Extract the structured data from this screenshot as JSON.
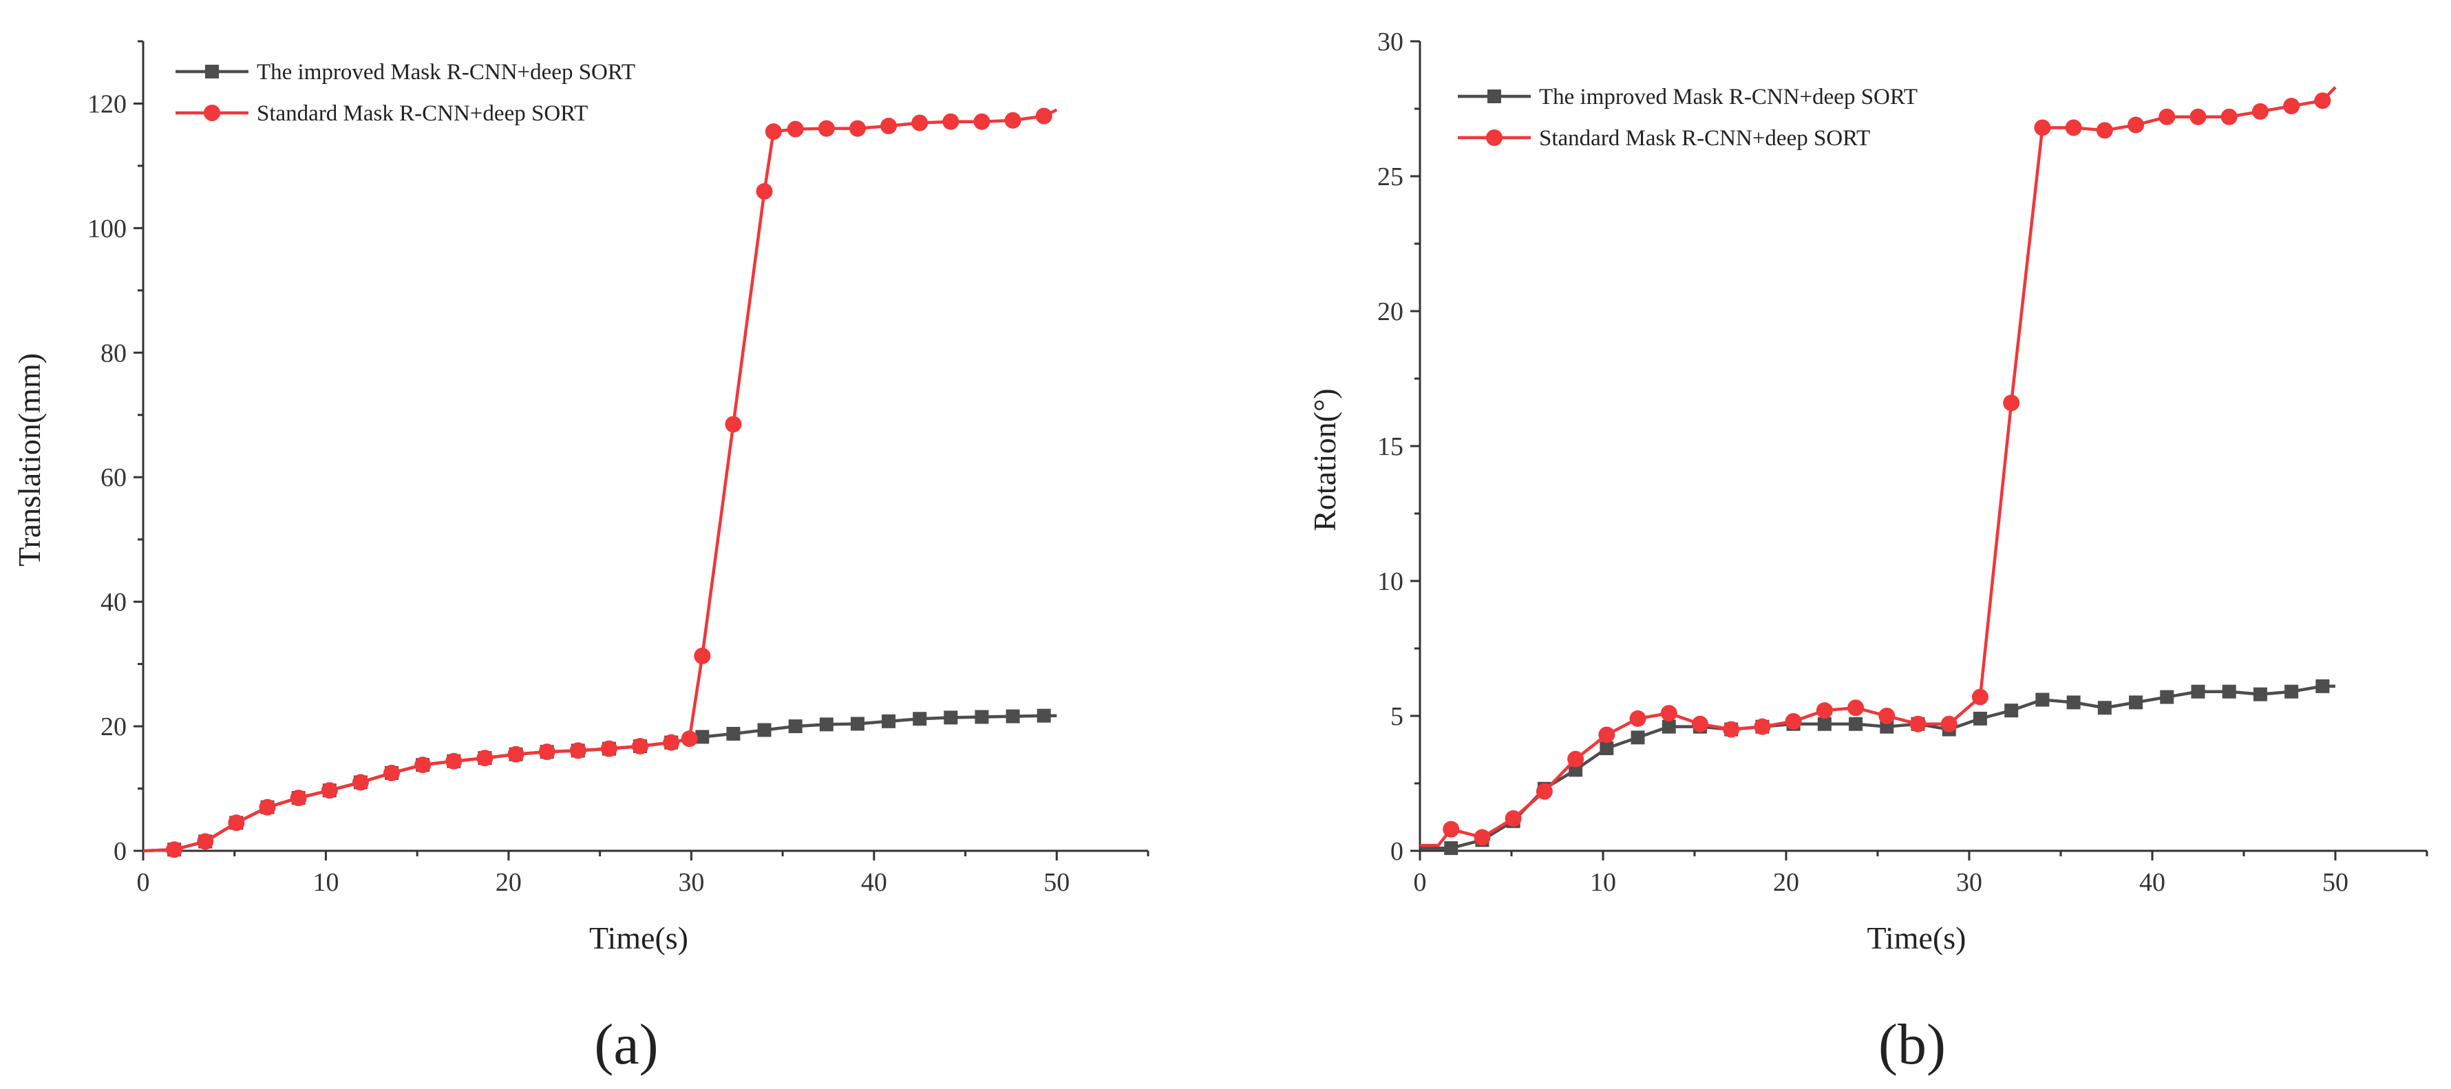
{
  "chart_data": [
    {
      "type": "line",
      "panel_label": "(a)",
      "xlabel": "Time(s)",
      "ylabel": "Translation(mm)",
      "xlim": [
        0,
        55
      ],
      "ylim": [
        0,
        130
      ],
      "xticks": [
        0,
        10,
        20,
        30,
        40,
        50
      ],
      "yticks": [
        0,
        20,
        40,
        60,
        80,
        100,
        120
      ],
      "legend_position": "top-left",
      "series": [
        {
          "name": "The improved Mask R-CNN+deep SORT",
          "color": "#4d4d4d",
          "marker": "square",
          "x": [
            0,
            1.7,
            3.4,
            5.1,
            6.8,
            8.5,
            10.2,
            11.9,
            13.6,
            15.3,
            17,
            18.7,
            20.4,
            22.1,
            23.8,
            25.5,
            27.2,
            28.9,
            30.6,
            32.3,
            34,
            35.7,
            37.4,
            39.1,
            40.8,
            42.5,
            44.2,
            45.9,
            47.6,
            49.3,
            50
          ],
          "y": [
            0,
            0.2,
            1.5,
            4.5,
            7,
            8.5,
            9.7,
            11,
            12.5,
            13.8,
            14.4,
            14.9,
            15.5,
            15.9,
            16.1,
            16.4,
            16.8,
            17.4,
            18.3,
            18.8,
            19.4,
            20,
            20.3,
            20.4,
            20.8,
            21.2,
            21.4,
            21.5,
            21.6,
            21.7,
            21.7
          ],
          "marker_start": 1
        },
        {
          "name": "Standard Mask R-CNN+deep SORT",
          "color": "#f0373a",
          "marker": "circle",
          "x": [
            0,
            1.7,
            3.4,
            5.1,
            6.8,
            8.5,
            10.2,
            11.9,
            13.6,
            15.3,
            17,
            18.7,
            20.4,
            22.1,
            23.8,
            25.5,
            27.2,
            28.9,
            29.9,
            30.6,
            32.3,
            34,
            34.5,
            35.7,
            37.4,
            39.1,
            40.8,
            42.5,
            44.2,
            45.9,
            47.6,
            49.3,
            50
          ],
          "y": [
            0,
            0.2,
            1.5,
            4.5,
            7,
            8.5,
            9.7,
            11,
            12.5,
            13.8,
            14.4,
            14.9,
            15.5,
            15.9,
            16.1,
            16.4,
            16.8,
            17.4,
            18,
            31.3,
            68.5,
            105.9,
            115.5,
            115.9,
            116,
            116,
            116.4,
            116.9,
            117.1,
            117.1,
            117.3,
            118,
            119
          ],
          "marker_start": 1
        }
      ]
    },
    {
      "type": "line",
      "panel_label": "(b)",
      "xlabel": "Time(s)",
      "ylabel": "Rotation(°)",
      "xlim": [
        0,
        55
      ],
      "ylim": [
        0,
        30
      ],
      "xticks": [
        0,
        10,
        20,
        30,
        40,
        50
      ],
      "yticks": [
        0,
        5,
        10,
        15,
        20,
        25,
        30
      ],
      "legend_position": "top-left",
      "series": [
        {
          "name": "The improved Mask R-CNN+deep SORT",
          "color": "#4d4d4d",
          "marker": "square",
          "x": [
            0,
            1.7,
            3.4,
            5.1,
            6.8,
            8.5,
            10.2,
            11.9,
            13.6,
            15.3,
            17,
            18.7,
            20.4,
            22.1,
            23.8,
            25.5,
            27.2,
            28.9,
            30.6,
            32.3,
            34,
            35.7,
            37.4,
            39.1,
            40.8,
            42.5,
            44.2,
            45.9,
            47.6,
            49.3,
            50
          ],
          "y": [
            0.1,
            0.1,
            0.4,
            1.1,
            2.3,
            3,
            3.8,
            4.2,
            4.6,
            4.6,
            4.5,
            4.6,
            4.7,
            4.7,
            4.7,
            4.6,
            4.7,
            4.5,
            4.9,
            5.2,
            5.6,
            5.5,
            5.3,
            5.5,
            5.7,
            5.9,
            5.9,
            5.8,
            5.9,
            6.1,
            6.1
          ],
          "marker_start": 1
        },
        {
          "name": "Standard Mask R-CNN+deep SORT",
          "color": "#f0373a",
          "marker": "circle",
          "x": [
            0,
            1,
            1.7,
            3.4,
            5.1,
            6.8,
            8.5,
            10.2,
            11.9,
            13.6,
            15.3,
            17,
            18.7,
            20.4,
            22.1,
            23.8,
            25.5,
            27.2,
            28.9,
            30.6,
            32.3,
            34,
            35.7,
            37.4,
            39.1,
            40.8,
            42.5,
            44.2,
            45.9,
            47.6,
            49.3,
            50
          ],
          "y": [
            0.2,
            0.2,
            0.8,
            0.5,
            1.2,
            2.2,
            3.4,
            4.3,
            4.9,
            5.1,
            4.7,
            4.5,
            4.6,
            4.8,
            5.2,
            5.3,
            5,
            4.7,
            4.7,
            5.7,
            16.6,
            26.8,
            26.8,
            26.7,
            26.9,
            27.2,
            27.2,
            27.2,
            27.4,
            27.6,
            27.8,
            28.3
          ],
          "marker_start": 2
        }
      ]
    }
  ]
}
